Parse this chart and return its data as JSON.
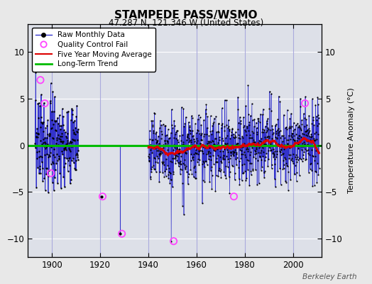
{
  "title": "STAMPEDE PASS/WSMO",
  "subtitle": "47.287 N, 121.346 W (United States)",
  "ylabel": "Temperature Anomaly (°C)",
  "credit": "Berkeley Earth",
  "xlim": [
    1890,
    2012
  ],
  "ylim": [
    -12,
    13
  ],
  "yticks": [
    -10,
    -5,
    0,
    5,
    10
  ],
  "xticks": [
    1900,
    1920,
    1940,
    1960,
    1980,
    2000
  ],
  "bg_color": "#e8e8e8",
  "plot_bg_color": "#dde0e8",
  "grid_color": "#ffffff",
  "seed": 17,
  "monthly_line_color": "#3333cc",
  "monthly_dot_color": "#000000",
  "qc_fail_color": "#ff44ff",
  "moving_avg_color": "#dd0000",
  "trend_color": "#00bb00",
  "vertical_line_color": "#aaaadd"
}
